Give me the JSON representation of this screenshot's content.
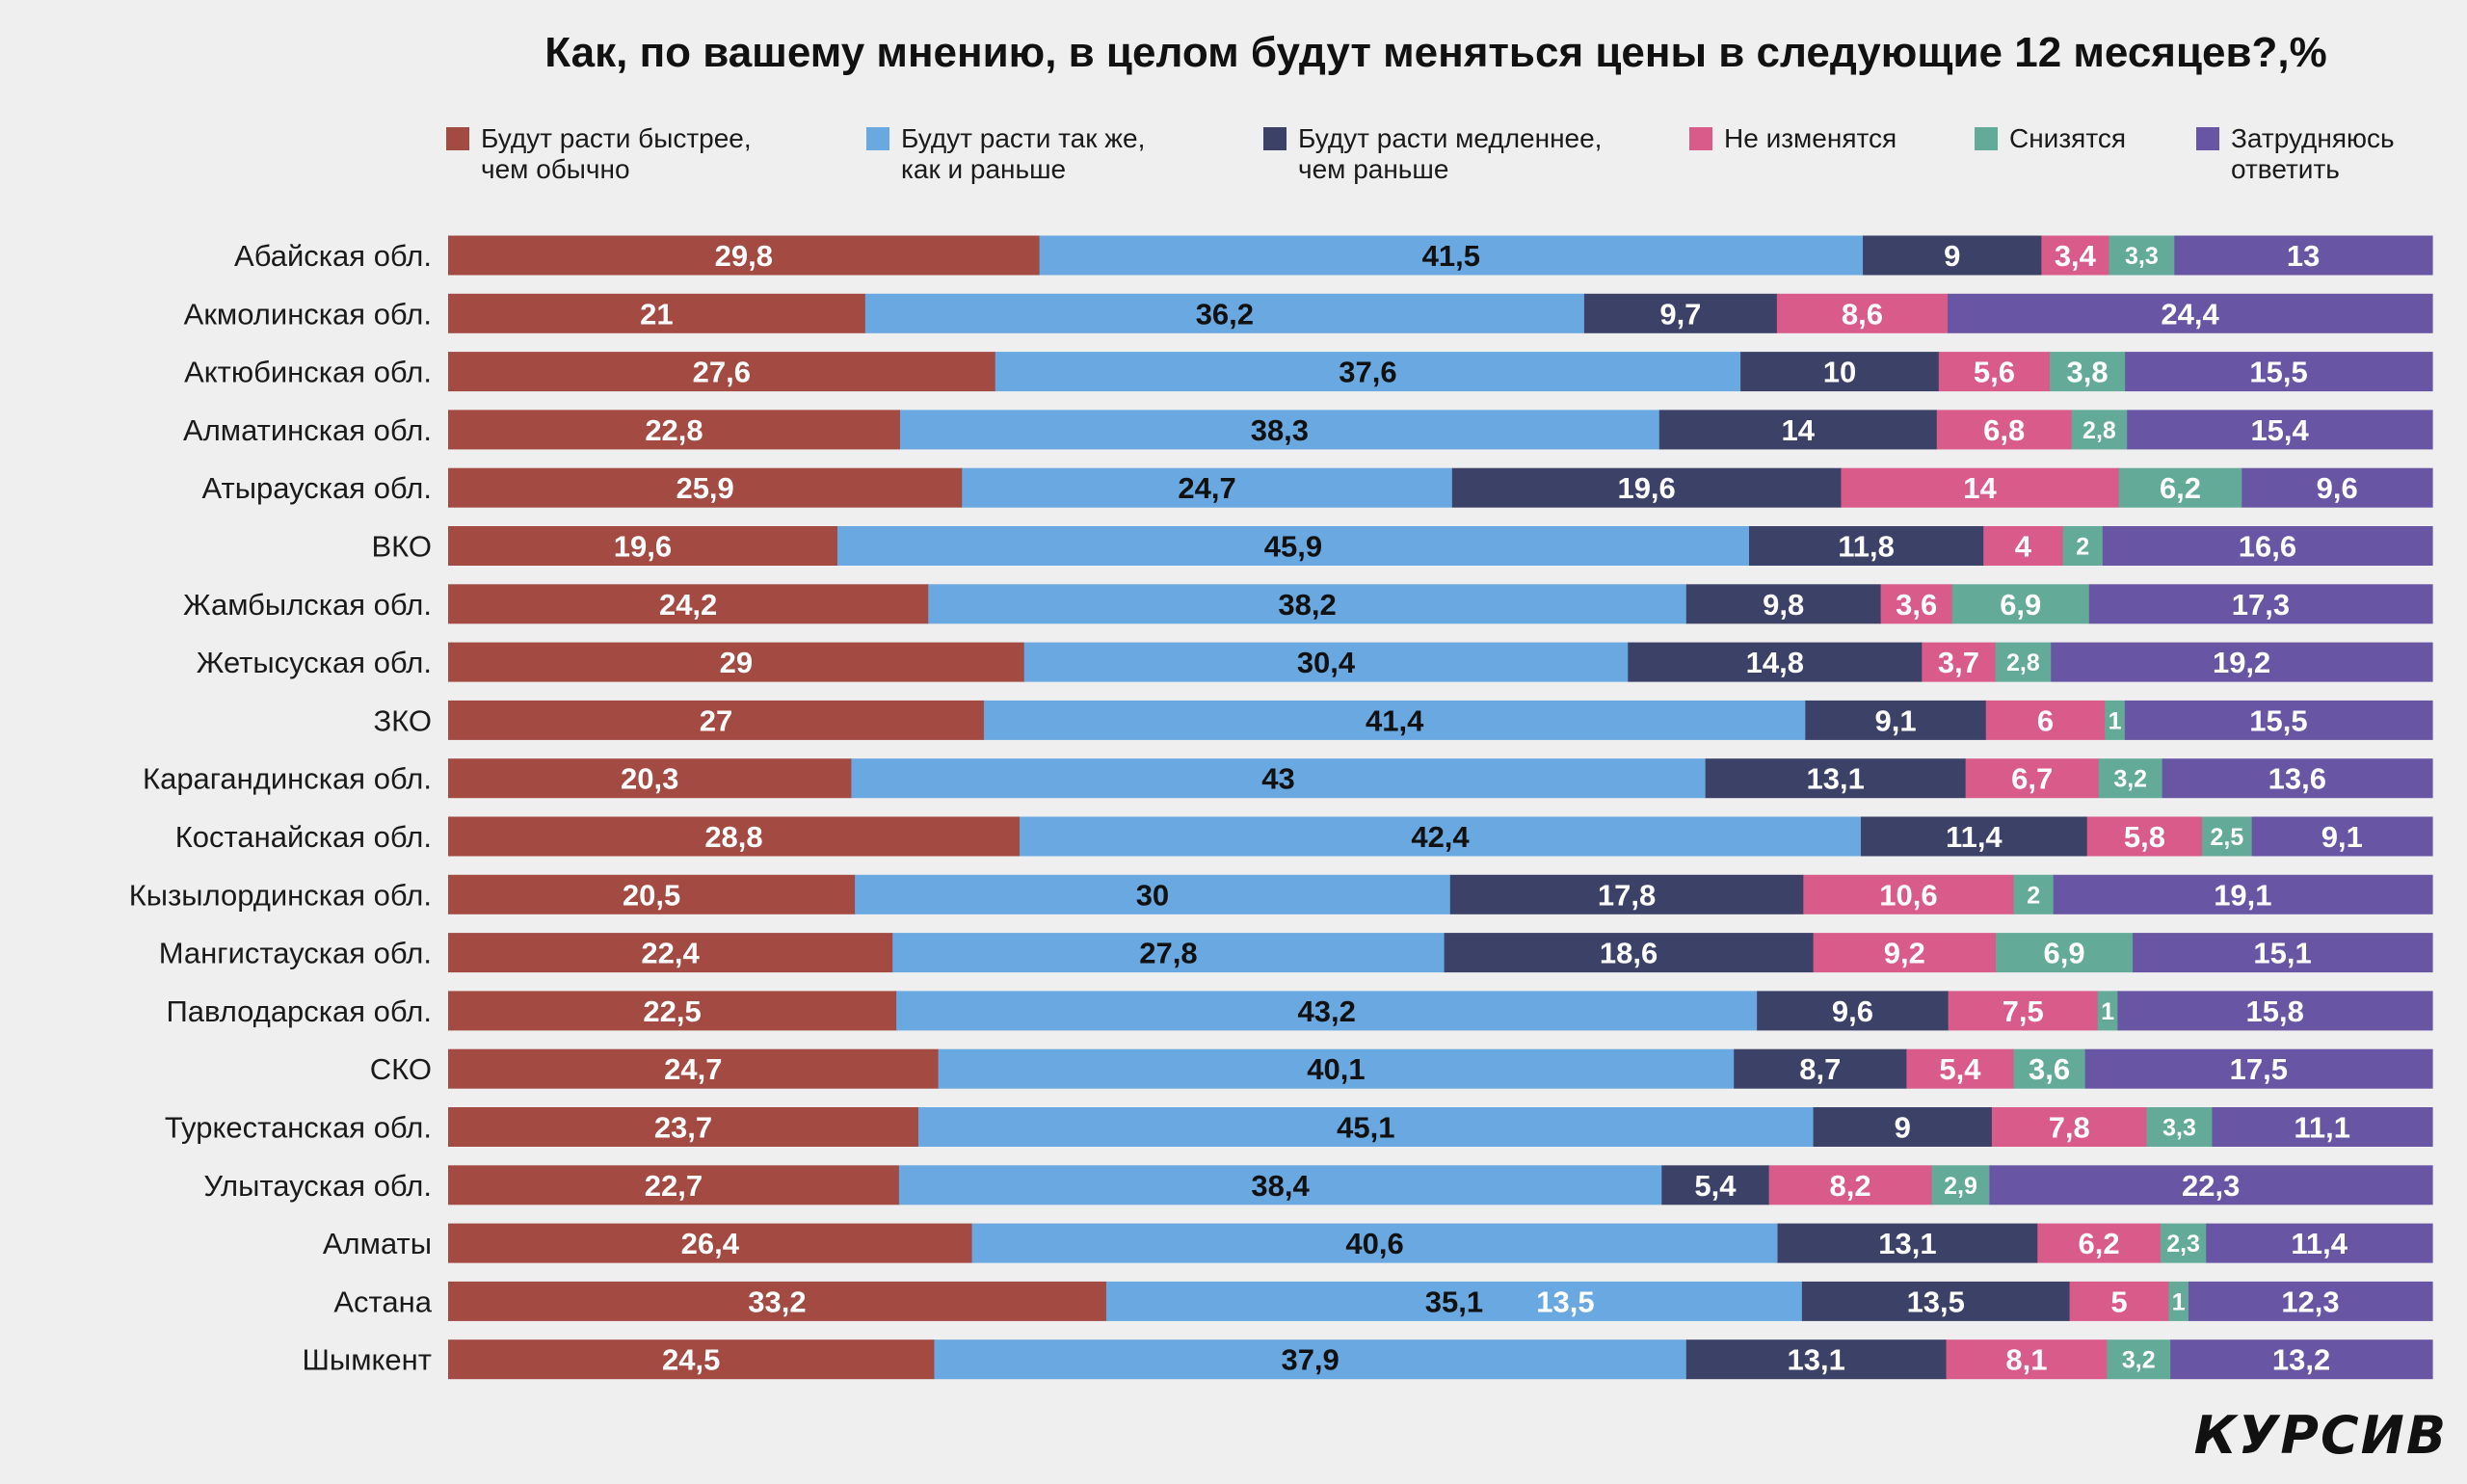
{
  "title": "Как, по вашему мнению, в целом будут меняться цены в следующие 12 месяцев?,%",
  "brand": "КУРСИВ",
  "colors": {
    "faster": "#a34a43",
    "same": "#69a8e0",
    "slower": "#3c4167",
    "unchanged": "#d95b8a",
    "decrease": "#63ab98",
    "hard": "#6855a3",
    "label_dark": "#111111",
    "label_light": "#ffffff"
  },
  "legend": [
    {
      "name": "Будут расти быстрее,\nчем обычно"
    },
    {
      "name": "Будут расти так же,\nкак и раньше"
    },
    {
      "name": "Будут расти медленнее,\nчем раньше"
    },
    {
      "name": "Не изменятся"
    },
    {
      "name": "Снизятся"
    },
    {
      "name": "Затрудняюсь\nответить"
    }
  ],
  "chart_data": {
    "type": "bar",
    "orientation": "horizontal",
    "stacked": true,
    "title": "Как, по вашему мнению, в целом будут меняться цены в следующие 12 месяцев?,%",
    "legend_position": "top",
    "categories": [
      "Абайская обл.",
      "Акмолинская обл.",
      "Актюбинская обл.",
      "Алматинская обл.",
      "Атырауская обл.",
      "ВКО",
      "Жамбылская обл.",
      "Жетысуская обл.",
      "ЗКО",
      "Карагандинская обл.",
      "Костанайская обл.",
      "Кызылординская обл.",
      "Мангистауская обл.",
      "Павлодарская обл.",
      "СКО",
      "Туркестанская обл.",
      "Улытауская обл.",
      "Алматы",
      "Астана",
      "Шымкент"
    ],
    "series": [
      {
        "name": "Будут расти быстрее, чем обычно",
        "values": [
          29.8,
          21,
          27.6,
          22.8,
          25.9,
          19.6,
          24.2,
          29,
          27,
          20.3,
          28.8,
          20.5,
          22.4,
          22.5,
          24.7,
          23.7,
          22.7,
          26.4,
          33.2,
          24.5
        ],
        "labels": [
          "29,8",
          "21",
          "27,6",
          "22,8",
          "25,9",
          "19,6",
          "24,2",
          "29",
          "27",
          "20,3",
          "28,8",
          "20,5",
          "22,4",
          "22,5",
          "24,7",
          "23,7",
          "22,7",
          "26,4",
          "33,2",
          "24,5"
        ]
      },
      {
        "name": "Будут расти так же, как и раньше",
        "values": [
          41.5,
          36.2,
          37.6,
          38.3,
          24.7,
          45.9,
          38.2,
          30.4,
          41.4,
          43,
          42.4,
          30,
          27.8,
          43.2,
          40.1,
          45.1,
          38.4,
          40.6,
          35.1,
          37.9
        ],
        "labels": [
          "41,5",
          "36,2",
          "37,6",
          "38,3",
          "24,7",
          "45,9",
          "38,2",
          "30,4",
          "41,4",
          "43",
          "42,4",
          "30",
          "27,8",
          "43,2",
          "40,1",
          "45,1",
          "38,4",
          "40,6",
          "35,1",
          "37,9"
        ]
      },
      {
        "name": "Будут расти медленнее, чем раньше",
        "values": [
          9,
          9.7,
          10,
          14,
          19.6,
          11.8,
          9.8,
          14.8,
          9.1,
          13.1,
          11.4,
          17.8,
          18.6,
          9.6,
          8.7,
          9,
          5.4,
          13.1,
          13.5,
          13.1
        ],
        "labels": [
          "9",
          "9,7",
          "10",
          "14",
          "19,6",
          "11,8",
          "9,8",
          "14,8",
          "9,1",
          "13,1",
          "11,4",
          "17,8",
          "18,6",
          "9,6",
          "8,7",
          "9",
          "5,4",
          "13,1",
          "13,5",
          "13,1"
        ]
      },
      {
        "name": "Не изменятся",
        "values": [
          3.4,
          8.6,
          5.6,
          6.8,
          14,
          4,
          3.6,
          3.7,
          6,
          6.7,
          5.8,
          10.6,
          9.2,
          7.5,
          5.4,
          7.8,
          8.2,
          6.2,
          5,
          8.1
        ],
        "labels": [
          "3,4",
          "8,6",
          "5,6",
          "6,8",
          "14",
          "4",
          "3,6",
          "3,7",
          "6",
          "6,7",
          "5,8",
          "10,6",
          "9,2",
          "7,5",
          "5,4",
          "7,8",
          "8,2",
          "6,2",
          "5",
          "8,1"
        ]
      },
      {
        "name": "Снизятся",
        "values": [
          3.3,
          0,
          3.8,
          2.8,
          6.2,
          2,
          6.9,
          2.8,
          1,
          3.2,
          2.5,
          2,
          6.9,
          1,
          3.6,
          3.3,
          2.9,
          2.3,
          1,
          3.2
        ],
        "labels": [
          "3,3",
          "",
          "3,8",
          "2,8",
          "6,2",
          "2",
          "6,9",
          "2,8",
          "1",
          "3,2",
          "2,5",
          "2",
          "6,9",
          "1",
          "3,6",
          "3,3",
          "2,9",
          "2,3",
          "1",
          "3,2"
        ]
      },
      {
        "name": "Затрудняюсь ответить",
        "values": [
          13,
          24.4,
          15.5,
          15.4,
          9.6,
          16.6,
          17.3,
          19.2,
          15.5,
          13.6,
          9.1,
          19.1,
          15.1,
          15.8,
          17.5,
          11.1,
          22.3,
          11.4,
          12.3,
          13.2
        ],
        "labels": [
          "13",
          "24,4",
          "15,5",
          "15,4",
          "9,6",
          "16,6",
          "17,3",
          "19,2",
          "15,5",
          "13,6",
          "9,1",
          "19,1",
          "15,1",
          "15,8",
          "17,5",
          "11,1",
          "22,3",
          "11,4",
          "12,3",
          "13,2"
        ]
      }
    ],
    "annotations": [
      {
        "category": "Астана",
        "text": "13,5",
        "note": "stray label inside light-blue segment"
      }
    ]
  }
}
